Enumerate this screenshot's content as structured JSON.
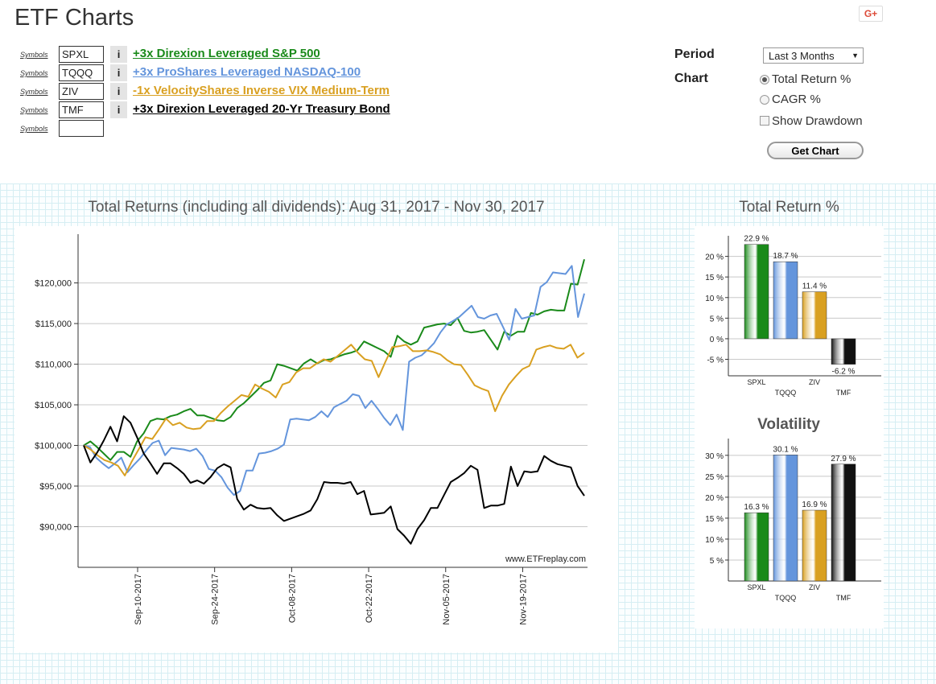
{
  "app": {
    "title": "ETF Charts",
    "share_label": "G+"
  },
  "symbols": [
    {
      "link": "Symbols",
      "value": "SPXL",
      "info": "i",
      "desc": "+3x Direxion Leveraged S&P 500",
      "color": "#1a8a1a"
    },
    {
      "link": "Symbols",
      "value": "TQQQ",
      "info": "i",
      "desc": "+3x ProShares Leveraged NASDAQ-100",
      "color": "#6495dc"
    },
    {
      "link": "Symbols",
      "value": "ZIV",
      "info": "i",
      "desc": "-1x VelocityShares Inverse VIX Medium-Term",
      "color": "#d9a021"
    },
    {
      "link": "Symbols",
      "value": "TMF",
      "info": "i",
      "desc": "+3x Direxion Leveraged 20-Yr Treasury Bond",
      "color": "#000000"
    },
    {
      "link": "Symbols",
      "value": "",
      "info": "",
      "desc": "",
      "color": "#000000"
    }
  ],
  "options": {
    "period_label": "Period",
    "period_value": "Last 3 Months",
    "chart_label": "Chart",
    "radio_total_return": "Total Return %",
    "radio_cagr": "CAGR %",
    "checkbox_drawdown": "Show Drawdown",
    "get_chart_button": "Get Chart"
  },
  "chart_data": [
    {
      "type": "line",
      "title": "Total Returns (including all dividends): Aug 31, 2017 - Nov 30, 2017",
      "watermark": "www.ETFreplay.com",
      "ylim": [
        85000,
        126000
      ],
      "y_ticks": [
        90000,
        95000,
        100000,
        105000,
        110000,
        115000,
        120000
      ],
      "y_tick_labels": [
        "$90,000",
        "$95,000",
        "$100,000",
        "$105,000",
        "$110,000",
        "$115,000",
        "$120,000"
      ],
      "x_ticks": [
        "Sep-10-2017",
        "Sep-24-2017",
        "Oct-08-2017",
        "Oct-22-2017",
        "Nov-05-2017",
        "Nov-19-2017"
      ],
      "x_tick_index": [
        7,
        17,
        27,
        37,
        47,
        57
      ],
      "x_count": 66,
      "series": [
        {
          "name": "SPXL",
          "color": "#1a8a1a",
          "values": [
            100000,
            100500,
            99800,
            99000,
            98200,
            99200,
            99200,
            98600,
            100500,
            101500,
            103000,
            103300,
            103200,
            103600,
            103800,
            104200,
            104500,
            103700,
            103700,
            103400,
            103100,
            103000,
            103500,
            104600,
            105200,
            106000,
            106800,
            107700,
            108000,
            110000,
            109800,
            109500,
            109200,
            110100,
            110600,
            110100,
            110500,
            110600,
            110900,
            111200,
            111400,
            111700,
            112800,
            112400,
            112000,
            111600,
            110900,
            113500,
            112800,
            112400,
            112800,
            114500,
            114700,
            114900,
            115000,
            114800,
            115700,
            114100,
            113900,
            114000,
            114200,
            113000,
            111800,
            114000,
            113500,
            114000,
            114000,
            116300,
            116100,
            116500,
            116700,
            116600,
            116600,
            119900,
            119800,
            122900
          ]
        },
        {
          "name": "TQQQ",
          "color": "#6495dc",
          "values": [
            100000,
            99800,
            98500,
            97800,
            97200,
            97800,
            98500,
            96700,
            97600,
            98400,
            99400,
            100300,
            100600,
            98800,
            99700,
            99600,
            99500,
            99300,
            99600,
            98700,
            97100,
            96900,
            96100,
            94800,
            93900,
            94400,
            96900,
            96900,
            99000,
            99100,
            99300,
            99600,
            100100,
            103200,
            103300,
            103200,
            103100,
            103500,
            104200,
            103500,
            104700,
            105100,
            105500,
            106300,
            106100,
            104600,
            105500,
            104500,
            103400,
            102500,
            103800,
            101900,
            110300,
            110800,
            111100,
            111800,
            112600,
            113900,
            114900,
            115300,
            115800,
            116500,
            117200,
            115800,
            115600,
            116000,
            116200,
            114600,
            113000,
            116800,
            115600,
            115800,
            116000,
            119500,
            120100,
            121300,
            121200,
            121100,
            122100,
            115800,
            118700
          ]
        },
        {
          "name": "ZIV",
          "color": "#d9a021",
          "values": [
            100000,
            99500,
            98800,
            98200,
            97900,
            97500,
            96300,
            98000,
            99500,
            101000,
            100800,
            102000,
            103300,
            102500,
            102800,
            102200,
            102000,
            102100,
            103000,
            103000,
            104000,
            104800,
            105500,
            106200,
            106000,
            107500,
            107000,
            106600,
            105900,
            107500,
            107800,
            109000,
            109500,
            109500,
            110100,
            110600,
            110300,
            111000,
            111700,
            112400,
            111400,
            110600,
            110400,
            108400,
            110300,
            112100,
            112200,
            112400,
            111600,
            111600,
            111700,
            111500,
            111200,
            110500,
            110000,
            109900,
            108700,
            107400,
            107000,
            106700,
            104200,
            106100,
            107500,
            108500,
            109400,
            109800,
            111800,
            112100,
            112300,
            112000,
            111900,
            112400,
            110800,
            111400
          ]
        },
        {
          "name": "TMF",
          "color": "#000000",
          "values": [
            100000,
            97900,
            99100,
            100600,
            102300,
            100500,
            103600,
            102800,
            101000,
            99000,
            97800,
            96500,
            97800,
            97800,
            97200,
            96500,
            95400,
            95700,
            95300,
            96100,
            97200,
            97700,
            97300,
            93400,
            92100,
            92700,
            92300,
            92200,
            92300,
            91400,
            90700,
            91000,
            91300,
            91600,
            92000,
            93400,
            95500,
            95400,
            95400,
            95300,
            95500,
            94000,
            94400,
            91500,
            91600,
            91700,
            92500,
            89700,
            88900,
            87900,
            89700,
            90800,
            92300,
            92300,
            93900,
            95500,
            96000,
            96600,
            97500,
            97000,
            92300,
            92600,
            92600,
            92800,
            97400,
            95000,
            96800,
            96700,
            96800,
            98700,
            98100,
            97700,
            97500,
            97300,
            95000,
            93800
          ]
        }
      ]
    },
    {
      "type": "bar",
      "title": "Total Return %",
      "categories": [
        "SPXL",
        "TQQQ",
        "ZIV",
        "TMF"
      ],
      "values": [
        22.9,
        18.7,
        11.4,
        -6.2
      ],
      "value_labels": [
        "22.9 %",
        "18.7 %",
        "11.4 %",
        "-6.2 %"
      ],
      "ylim": [
        -9,
        25
      ],
      "y_ticks": [
        -5,
        0,
        5,
        10,
        15,
        20
      ],
      "y_tick_labels": [
        "-5 %",
        "0 %",
        "5 %",
        "10 %",
        "15 %",
        "20 %"
      ],
      "colors": [
        "#1a8a1a",
        "#6495dc",
        "#d9a021",
        "#111111"
      ]
    },
    {
      "type": "bar",
      "title": "Volatility",
      "categories": [
        "SPXL",
        "TQQQ",
        "ZIV",
        "TMF"
      ],
      "values": [
        16.3,
        30.1,
        16.9,
        27.9
      ],
      "value_labels": [
        "16.3 %",
        "30.1 %",
        "16.9 %",
        "27.9 %"
      ],
      "ylim": [
        0,
        34
      ],
      "y_ticks": [
        5,
        10,
        15,
        20,
        25,
        30
      ],
      "y_tick_labels": [
        "5 %",
        "10 %",
        "15 %",
        "20 %",
        "25 %",
        "30 %"
      ],
      "colors": [
        "#1a8a1a",
        "#6495dc",
        "#d9a021",
        "#111111"
      ]
    }
  ]
}
